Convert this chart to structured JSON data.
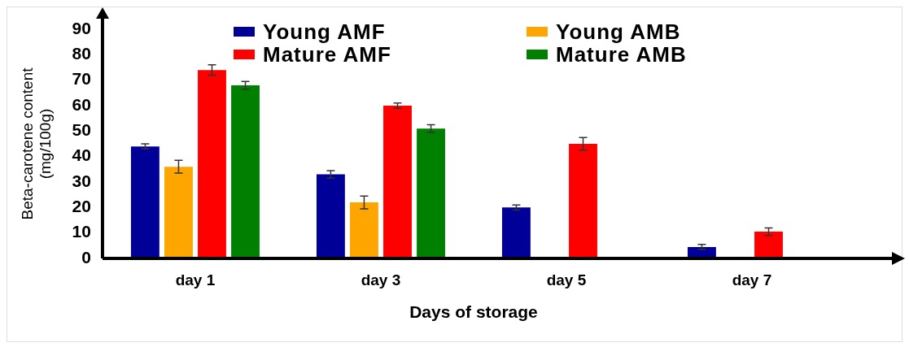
{
  "chart_data": {
    "type": "bar",
    "categories": [
      "day 1",
      "day 3",
      "day 5",
      "day 7"
    ],
    "xlabel": "Days of storage",
    "ylabel": "Beta-carotene content\n(mg/100g)",
    "ylim": [
      0,
      90
    ],
    "yticks": [
      0,
      10,
      20,
      30,
      40,
      50,
      60,
      70,
      80,
      90
    ],
    "grid": false,
    "legend": "top",
    "series": [
      {
        "name": "Young AMF",
        "color": "#000099",
        "values": [
          44,
          33,
          20,
          4.5
        ],
        "errors": [
          1,
          1.5,
          1,
          1
        ]
      },
      {
        "name": "Young AMB",
        "color": "#ffa500",
        "values": [
          36,
          22,
          null,
          null
        ],
        "errors": [
          2.5,
          2.5,
          null,
          null
        ]
      },
      {
        "name": "Mature AMF",
        "color": "#ff0000",
        "values": [
          74,
          60,
          45,
          10.5
        ],
        "errors": [
          2,
          1,
          2.5,
          1.5
        ]
      },
      {
        "name": "Mature AMB",
        "color": "#008000",
        "values": [
          68,
          51,
          null,
          null
        ],
        "errors": [
          1.5,
          1.5,
          null,
          null
        ]
      }
    ]
  }
}
